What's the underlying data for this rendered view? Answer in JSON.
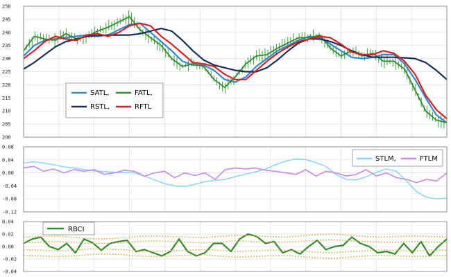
{
  "chart_data": [
    {
      "type": "line",
      "panel": "price",
      "ylim": [
        200,
        250
      ],
      "yticks": [
        "250",
        "245",
        "240",
        "235",
        "230",
        "225",
        "220",
        "215",
        "210",
        "205",
        "200"
      ],
      "legend": {
        "position": "bottom-left",
        "labels": [
          "SATL,",
          "FATL,",
          "RSTL,",
          "RFTL"
        ]
      },
      "grid": true,
      "series": [
        {
          "name": "SATL",
          "color": "#2b8ad4",
          "values": [
            231,
            235,
            237,
            237.5,
            238,
            238.5,
            239,
            238.5,
            239,
            241,
            243,
            243.5,
            240,
            236.5,
            233,
            229,
            227.5,
            227.5,
            225.5,
            222,
            221,
            223,
            227,
            230,
            233,
            235,
            237,
            238.5,
            238,
            235.5,
            233,
            230.5,
            230,
            230.5,
            231.5,
            231.5,
            228,
            222,
            215,
            208.5,
            205.5
          ]
        },
        {
          "name": "FATL",
          "color": "#2e8b2e",
          "values": [
            233,
            238.5,
            237.5,
            237,
            239.5,
            237.5,
            238.5,
            240.5,
            242,
            244,
            246,
            241,
            238,
            235,
            230,
            227,
            228,
            227,
            222,
            219,
            223,
            228,
            231,
            231.5,
            234,
            236,
            238,
            238,
            239,
            234,
            231,
            233,
            231,
            232,
            229,
            229,
            226,
            218,
            210,
            206.5,
            205.5
          ]
        },
        {
          "name": "RSTL",
          "color": "#1a2e5a",
          "values": [
            226,
            228.5,
            231.5,
            234.5,
            236.5,
            237.5,
            238.5,
            238.8,
            239,
            239,
            239,
            239.5,
            240.5,
            241.5,
            240.5,
            237,
            233,
            229.5,
            227.5,
            226.5,
            225.5,
            225,
            225,
            226.5,
            229.5,
            233,
            236,
            237.5,
            237.5,
            236.5,
            235,
            233,
            231.5,
            230.5,
            230.5,
            230.5,
            230.3,
            230,
            228.5,
            225.5,
            222
          ]
        },
        {
          "name": "RFTL",
          "color": "#e01c1c",
          "values": [
            230,
            233,
            236.5,
            238.5,
            237.5,
            237,
            239,
            239.5,
            238.5,
            240,
            242.5,
            243.5,
            242.5,
            238.5,
            235.5,
            232,
            228.5,
            228,
            227,
            224,
            222,
            222,
            225.5,
            229,
            232,
            234.5,
            236.5,
            237.5,
            238.5,
            238,
            235.5,
            232.5,
            231.5,
            231.5,
            233,
            232,
            229,
            224,
            216,
            210.5,
            207
          ]
        }
      ]
    },
    {
      "type": "line",
      "panel": "momentum",
      "ylim": [
        -0.12,
        0.08
      ],
      "yticks": [
        "0.08",
        "0.04",
        "0.00",
        "-0.04",
        "-0.08",
        "-0.12"
      ],
      "legend": {
        "position": "top-right",
        "labels": [
          "STLM,",
          "FTLM"
        ]
      },
      "grid": true,
      "series": [
        {
          "name": "STLM",
          "color": "#8fd5f0",
          "values": [
            0.03,
            0.034,
            0.03,
            0.025,
            0.018,
            0.015,
            0.01,
            0.006,
            0.004,
            0.002,
            0.001,
            0.0,
            -0.01,
            -0.022,
            -0.033,
            -0.04,
            -0.042,
            -0.035,
            -0.027,
            -0.023,
            -0.02,
            -0.012,
            -0.004,
            0.003,
            0.012,
            0.025,
            0.036,
            0.043,
            0.041,
            0.032,
            0.02,
            -0.005,
            -0.02,
            -0.022,
            -0.012,
            0.002,
            0.012,
            0.005,
            -0.025,
            -0.058,
            -0.075,
            -0.08,
            -0.078
          ]
        },
        {
          "name": "FTLM",
          "color": "#c48ae8",
          "values": [
            0.015,
            0.02,
            0.005,
            0.012,
            0.0,
            0.01,
            0.005,
            0.01,
            -0.005,
            0.0,
            0.008,
            0.005,
            -0.01,
            0.0,
            0.005,
            -0.015,
            0.0,
            -0.008,
            0.0,
            -0.02,
            0.01,
            0.015,
            0.012,
            0.015,
            0.008,
            0.005,
            0.0,
            -0.005,
            0.01,
            -0.01,
            0.005,
            0.0,
            -0.01,
            -0.005,
            0.01,
            -0.01,
            0.0,
            -0.015,
            -0.02,
            -0.03,
            -0.02,
            -0.025,
            0.0
          ]
        }
      ]
    },
    {
      "type": "line",
      "panel": "rbci",
      "ylim": [
        -0.04,
        0.04
      ],
      "yticks": [
        "0.04",
        "0.02",
        "0.00",
        "-0.02",
        "-0.04"
      ],
      "legend": {
        "position": "top-left",
        "labels": [
          "RBCI"
        ]
      },
      "grid": true,
      "series": [
        {
          "name": "RBCI",
          "color": "#2e8b2e",
          "values": [
            0.005,
            0.012,
            0.015,
            0.0,
            -0.005,
            0.005,
            -0.01,
            0.012,
            0.006,
            -0.006,
            0.005,
            0.008,
            0.01,
            -0.008,
            -0.005,
            -0.01,
            -0.015,
            -0.008,
            0.012,
            -0.008,
            -0.015,
            -0.01,
            0.005,
            0.005,
            -0.008,
            0.012,
            0.02,
            0.016,
            0.005,
            0.008,
            -0.01,
            -0.005,
            -0.012,
            0.0,
            0.01,
            -0.005,
            0.0,
            0.002,
            0.015,
            0.005,
            0.0,
            -0.01,
            -0.008,
            -0.012,
            0.005,
            -0.01,
            0.008,
            -0.015,
            0.0,
            0.012
          ]
        },
        {
          "name": "",
          "color": "#f0a030",
          "style": "dotted",
          "values": [
            0.015,
            0.016,
            0.017,
            0.015,
            0.013,
            0.012,
            0.014,
            0.016,
            0.017,
            0.016,
            0.015,
            0.014,
            0.016,
            0.018,
            0.017,
            0.016,
            0.015,
            0.017,
            0.019,
            0.02,
            0.018,
            0.016,
            0.015,
            0.016,
            0.017,
            0.016,
            0.015
          ]
        },
        {
          "name": "",
          "color": "#f0a030",
          "style": "dotted",
          "values": [
            0.006,
            0.007,
            0.008,
            0.007,
            0.005,
            0.005,
            0.006,
            0.008,
            0.009,
            0.008,
            0.007,
            0.006,
            0.007,
            0.009,
            0.008,
            0.007,
            0.007,
            0.008,
            0.01,
            0.011,
            0.009,
            0.008,
            0.007,
            0.007,
            0.008,
            0.007,
            0.007
          ]
        },
        {
          "name": "",
          "color": "#f0a030",
          "style": "dotted",
          "values": [
            -0.005,
            -0.006,
            -0.007,
            -0.006,
            -0.004,
            -0.004,
            -0.005,
            -0.007,
            -0.008,
            -0.007,
            -0.006,
            -0.005,
            -0.006,
            -0.008,
            -0.007,
            -0.006,
            -0.006,
            -0.007,
            -0.009,
            -0.01,
            -0.008,
            -0.007,
            -0.006,
            -0.006,
            -0.007,
            -0.006,
            -0.006
          ]
        },
        {
          "name": "",
          "color": "#f0a030",
          "style": "dotted",
          "values": [
            -0.014,
            -0.015,
            -0.016,
            -0.015,
            -0.013,
            -0.012,
            -0.013,
            -0.015,
            -0.016,
            -0.015,
            -0.014,
            -0.013,
            -0.015,
            -0.017,
            -0.016,
            -0.015,
            -0.014,
            -0.016,
            -0.018,
            -0.019,
            -0.017,
            -0.015,
            -0.014,
            -0.015,
            -0.016,
            -0.015,
            -0.014
          ]
        }
      ]
    }
  ]
}
